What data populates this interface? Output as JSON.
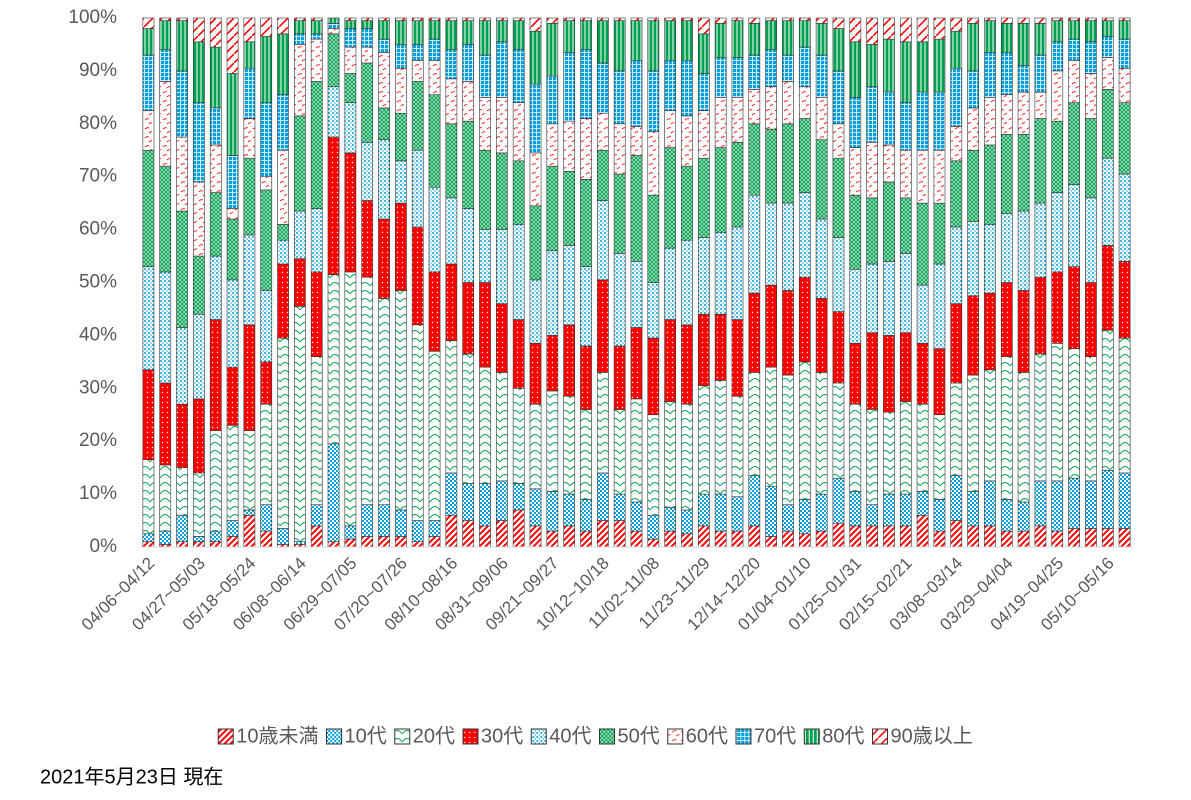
{
  "chart_data": {
    "type": "stacked_bar_100",
    "categories": [
      "04/06~04/12",
      null,
      null,
      "04/27~05/03",
      null,
      null,
      "05/18~05/24",
      null,
      null,
      "06/08~06/14",
      null,
      null,
      "06/29~07/05",
      null,
      null,
      "07/20~07/26",
      null,
      null,
      "08/10~08/16",
      null,
      null,
      "08/31~09/06",
      null,
      null,
      "09/21~09/27",
      null,
      null,
      "10/12~10/18",
      null,
      null,
      "11/02~11/08",
      null,
      null,
      "11/23~11/29",
      null,
      null,
      "12/14~12/20",
      null,
      null,
      "01/04~01/10",
      null,
      null,
      "01/25~01/31",
      null,
      null,
      "02/15~02/21",
      null,
      null,
      "03/08~03/14",
      null,
      null,
      "03/29~04/04",
      null,
      null,
      "04/19~04/25",
      null,
      null,
      "05/10~05/16",
      null
    ],
    "series": [
      {
        "name": "10歳未満",
        "color": "#ff0000",
        "pattern": "stripes",
        "values": [
          1,
          0.5,
          1,
          1,
          1,
          2,
          6,
          3,
          0.5,
          0.5,
          4,
          1,
          1.5,
          2,
          2,
          2,
          1,
          2,
          6,
          5,
          4,
          5,
          7,
          4,
          3,
          4,
          3,
          5,
          5,
          3,
          1.5,
          3,
          2.5,
          4,
          3,
          3,
          4,
          2,
          3,
          2.5,
          3,
          4.5,
          4,
          4,
          4,
          4,
          6,
          3,
          5,
          4,
          4,
          3,
          3,
          4,
          3,
          3.5,
          3.5,
          3.5,
          3.5
        ]
      },
      {
        "name": "10代",
        "color": "#00a0e0",
        "pattern": "checker",
        "values": [
          1.5,
          2.5,
          5,
          1,
          2,
          3,
          1,
          5,
          3,
          0.5,
          4,
          18.5,
          2.5,
          6,
          6,
          5,
          4,
          3,
          8,
          7,
          8,
          7.5,
          5,
          7,
          7.5,
          6,
          6,
          9,
          5,
          5.5,
          4.5,
          4.5,
          4.5,
          6,
          7,
          6.5,
          9.5,
          9.5,
          5,
          6.5,
          7,
          8.5,
          6.5,
          4,
          6,
          6,
          4.5,
          6,
          8.5,
          6.5,
          8.5,
          6,
          5.5,
          8.5,
          9.5,
          9.5,
          9,
          11,
          10.5
        ]
      },
      {
        "name": "20代",
        "color": "#00a050",
        "pattern": "scallop",
        "values": [
          14,
          12.5,
          9,
          12,
          19,
          18,
          15,
          19,
          36,
          44.5,
          28,
          32,
          48,
          43,
          39,
          41.5,
          37,
          32,
          25,
          24.5,
          22,
          20.5,
          18,
          16,
          19,
          18.5,
          17,
          19,
          16,
          19.5,
          19,
          20,
          20,
          20.5,
          21.5,
          19,
          19.5,
          22.5,
          24.5,
          26,
          23,
          18,
          16.5,
          18,
          15.5,
          17.5,
          16.5,
          16,
          17.5,
          22,
          21,
          27,
          24.5,
          24,
          26,
          24.5,
          23.5,
          26.5,
          25.5
        ]
      },
      {
        "name": "30代",
        "color": "#ff0000",
        "pattern": "reddots",
        "values": [
          17,
          15.5,
          12,
          14,
          21,
          11,
          20,
          8,
          14,
          9,
          16,
          26,
          22.5,
          14.5,
          15,
          16.5,
          18.5,
          15,
          14.5,
          13.5,
          16,
          13,
          13,
          11.5,
          10.5,
          13.5,
          12,
          17.5,
          12,
          13.5,
          14.5,
          15.5,
          15,
          13.5,
          12.5,
          14.5,
          15,
          15.5,
          16,
          16,
          14,
          13.5,
          11.5,
          14.5,
          14.5,
          13,
          11.5,
          12.5,
          15,
          15,
          14.5,
          14,
          15.5,
          14.5,
          13.5,
          15.5,
          14,
          16,
          14.5
        ]
      },
      {
        "name": "40代",
        "color": "#00a0e0",
        "pattern": "dots",
        "values": [
          19.5,
          21,
          14.5,
          16,
          12,
          16.5,
          17,
          13.5,
          4.5,
          9,
          12,
          9.5,
          9.5,
          11,
          15,
          8,
          14.5,
          16,
          12.5,
          14,
          10,
          14,
          18,
          12,
          16,
          15,
          15,
          15,
          17.5,
          12.5,
          10.5,
          13.5,
          16,
          14.5,
          15.5,
          17.5,
          18.5,
          15.5,
          16.5,
          16,
          15,
          14,
          14,
          13,
          14,
          15,
          11,
          16,
          14.5,
          14,
          13,
          13,
          15,
          14,
          15,
          15.5,
          16,
          16.5,
          16.5
        ]
      },
      {
        "name": "50代",
        "color": "#00a050",
        "pattern": "crosshatch",
        "values": [
          22,
          20,
          22,
          11,
          12,
          11.5,
          14.5,
          19,
          3,
          18,
          24,
          10,
          5.5,
          15,
          6,
          9,
          13,
          17.5,
          14,
          16.5,
          15,
          14.5,
          12,
          14,
          16,
          14,
          16.5,
          9.5,
          15,
          20,
          16.5,
          19,
          14,
          15,
          16,
          16,
          13.5,
          14,
          15,
          14,
          15,
          15,
          14,
          12.5,
          15,
          10.5,
          15.5,
          11.5,
          12.5,
          13.5,
          15,
          15,
          14.5,
          16,
          13.5,
          15.5,
          15,
          13,
          13.5
        ]
      },
      {
        "name": "60代",
        "color": "#ff0000",
        "pattern": "dashes",
        "values": [
          7.5,
          16,
          14,
          14,
          9,
          2,
          7.5,
          2.5,
          14,
          13.5,
          8,
          1,
          5,
          3,
          10.5,
          8.5,
          4,
          6.5,
          8.5,
          7.5,
          10,
          10.5,
          11,
          10,
          8,
          9.5,
          11.5,
          7,
          9.5,
          5.5,
          12,
          7,
          9.5,
          9,
          9.5,
          8.5,
          6.5,
          8,
          8,
          6,
          8,
          6.5,
          9,
          10.5,
          7,
          9,
          10,
          10,
          6.5,
          8,
          9,
          7.5,
          8,
          5,
          9.5,
          8,
          8.5,
          6,
          6.5
        ]
      },
      {
        "name": "70代",
        "color": "#00a0e0",
        "pattern": "grid",
        "values": [
          10.5,
          6,
          12.5,
          15,
          7,
          10,
          9.5,
          14,
          10.5,
          2,
          1,
          1,
          3.5,
          3.5,
          2.5,
          4.5,
          3,
          4,
          5.5,
          7,
          8,
          10.5,
          10,
          13,
          9,
          13,
          13,
          9.5,
          10,
          12.5,
          11.5,
          9.5,
          10.5,
          7,
          7.5,
          7.5,
          6.5,
          7,
          5,
          7.5,
          8,
          10,
          9.5,
          10.5,
          10,
          9,
          11,
          11,
          11,
          7,
          8.5,
          8,
          5,
          7,
          5.5,
          4,
          6,
          4,
          5.5
        ]
      },
      {
        "name": "80代",
        "color": "#00a050",
        "pattern": "vstripes",
        "values": [
          5,
          5.5,
          9.5,
          11.5,
          11.5,
          15.5,
          5,
          12.5,
          11.5,
          2.5,
          2.5,
          1,
          1.5,
          1.5,
          3.5,
          4.5,
          4.5,
          3.5,
          5.5,
          4.5,
          6.5,
          4,
          5.5,
          10,
          10,
          6,
          5.5,
          8,
          9.5,
          7.5,
          9.5,
          7.5,
          7.5,
          7.5,
          6.5,
          7,
          6,
          5.5,
          6.5,
          5,
          6,
          8,
          10.5,
          8,
          10,
          11.5,
          9.5,
          10,
          7,
          9,
          6,
          5.5,
          8,
          6,
          4,
          3.5,
          4,
          3,
          3.5
        ]
      },
      {
        "name": "90歳以上",
        "color": "#ff0000",
        "pattern": "widestripes",
        "values": [
          2,
          0.5,
          0.5,
          4.5,
          5.5,
          10.5,
          4.5,
          3.5,
          3,
          0.5,
          0.5,
          0,
          0.5,
          0.5,
          0.5,
          0.5,
          0.5,
          0.5,
          0.5,
          0.5,
          0.5,
          0.5,
          0.5,
          2.5,
          1,
          0.5,
          0.5,
          0.5,
          0.5,
          0.5,
          0.5,
          0.5,
          0.5,
          3,
          1,
          0.5,
          1,
          0.5,
          0.5,
          0.5,
          1,
          2,
          4.5,
          5,
          4,
          4.5,
          4.5,
          4,
          2.5,
          1,
          0.5,
          1,
          1,
          1,
          0.5,
          0.5,
          0.5,
          0.5,
          0.5
        ]
      }
    ],
    "ylim": [
      0,
      100
    ],
    "yticks": [
      {
        "value": 0,
        "label": "0%"
      },
      {
        "value": 10,
        "label": "10%"
      },
      {
        "value": 20,
        "label": "20%"
      },
      {
        "value": 30,
        "label": "30%"
      },
      {
        "value": 40,
        "label": "40%"
      },
      {
        "value": 50,
        "label": "50%"
      },
      {
        "value": 60,
        "label": "60%"
      },
      {
        "value": 70,
        "label": "70%"
      },
      {
        "value": 80,
        "label": "80%"
      },
      {
        "value": 90,
        "label": "90%"
      },
      {
        "value": 100,
        "label": "100%"
      }
    ],
    "grid": false,
    "legend": "bottom",
    "note": "2021年5月23日 現在"
  }
}
